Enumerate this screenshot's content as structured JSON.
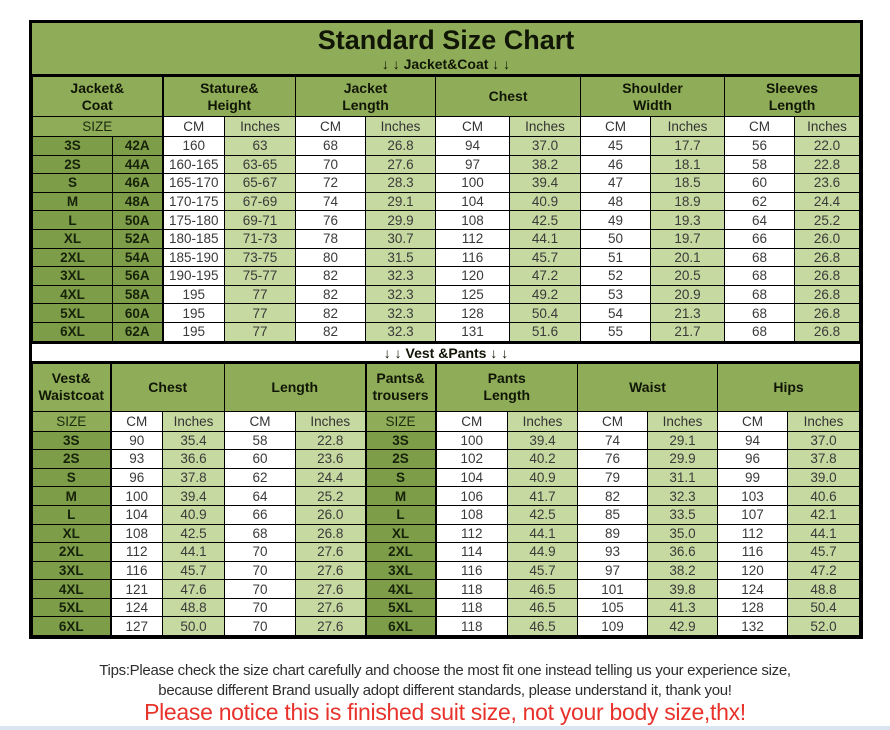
{
  "title": "Standard Size Chart",
  "units": {
    "size": "SIZE",
    "cm": "CM",
    "inches": "Inches"
  },
  "jacket_section": {
    "divider": "↓ ↓  Jacket&Coat  ↓ ↓",
    "columns": [
      "Jacket&\nCoat",
      "Stature&\nHeight",
      "Jacket\nLength",
      "Chest",
      "Shoulder\nWidth",
      "Sleeves\nLength"
    ],
    "rows": [
      [
        "3S",
        "42A",
        "160",
        "63",
        "68",
        "26.8",
        "94",
        "37.0",
        "45",
        "17.7",
        "56",
        "22.0"
      ],
      [
        "2S",
        "44A",
        "160-165",
        "63-65",
        "70",
        "27.6",
        "97",
        "38.2",
        "46",
        "18.1",
        "58",
        "22.8"
      ],
      [
        "S",
        "46A",
        "165-170",
        "65-67",
        "72",
        "28.3",
        "100",
        "39.4",
        "47",
        "18.5",
        "60",
        "23.6"
      ],
      [
        "M",
        "48A",
        "170-175",
        "67-69",
        "74",
        "29.1",
        "104",
        "40.9",
        "48",
        "18.9",
        "62",
        "24.4"
      ],
      [
        "L",
        "50A",
        "175-180",
        "69-71",
        "76",
        "29.9",
        "108",
        "42.5",
        "49",
        "19.3",
        "64",
        "25.2"
      ],
      [
        "XL",
        "52A",
        "180-185",
        "71-73",
        "78",
        "30.7",
        "112",
        "44.1",
        "50",
        "19.7",
        "66",
        "26.0"
      ],
      [
        "2XL",
        "54A",
        "185-190",
        "73-75",
        "80",
        "31.5",
        "116",
        "45.7",
        "51",
        "20.1",
        "68",
        "26.8"
      ],
      [
        "3XL",
        "56A",
        "190-195",
        "75-77",
        "82",
        "32.3",
        "120",
        "47.2",
        "52",
        "20.5",
        "68",
        "26.8"
      ],
      [
        "4XL",
        "58A",
        "195",
        "77",
        "82",
        "32.3",
        "125",
        "49.2",
        "53",
        "20.9",
        "68",
        "26.8"
      ],
      [
        "5XL",
        "60A",
        "195",
        "77",
        "82",
        "32.3",
        "128",
        "50.4",
        "54",
        "21.3",
        "68",
        "26.8"
      ],
      [
        "6XL",
        "62A",
        "195",
        "77",
        "82",
        "32.3",
        "131",
        "51.6",
        "55",
        "21.7",
        "68",
        "26.8"
      ]
    ]
  },
  "vest_section": {
    "divider": "↓ ↓  Vest &Pants  ↓ ↓",
    "columns": [
      "Vest&\nWaistcoat",
      "Chest",
      "Length",
      "Pants&\ntrousers",
      "Pants\nLength",
      "Waist",
      "Hips"
    ],
    "rows": [
      [
        "3S",
        "90",
        "35.4",
        "58",
        "22.8",
        "3S",
        "100",
        "39.4",
        "74",
        "29.1",
        "94",
        "37.0"
      ],
      [
        "2S",
        "93",
        "36.6",
        "60",
        "23.6",
        "2S",
        "102",
        "40.2",
        "76",
        "29.9",
        "96",
        "37.8"
      ],
      [
        "S",
        "96",
        "37.8",
        "62",
        "24.4",
        "S",
        "104",
        "40.9",
        "79",
        "31.1",
        "99",
        "39.0"
      ],
      [
        "M",
        "100",
        "39.4",
        "64",
        "25.2",
        "M",
        "106",
        "41.7",
        "82",
        "32.3",
        "103",
        "40.6"
      ],
      [
        "L",
        "104",
        "40.9",
        "66",
        "26.0",
        "L",
        "108",
        "42.5",
        "85",
        "33.5",
        "107",
        "42.1"
      ],
      [
        "XL",
        "108",
        "42.5",
        "68",
        "26.8",
        "XL",
        "112",
        "44.1",
        "89",
        "35.0",
        "112",
        "44.1"
      ],
      [
        "2XL",
        "112",
        "44.1",
        "70",
        "27.6",
        "2XL",
        "114",
        "44.9",
        "93",
        "36.6",
        "116",
        "45.7"
      ],
      [
        "3XL",
        "116",
        "45.7",
        "70",
        "27.6",
        "3XL",
        "116",
        "45.7",
        "97",
        "38.2",
        "120",
        "47.2"
      ],
      [
        "4XL",
        "121",
        "47.6",
        "70",
        "27.6",
        "4XL",
        "118",
        "46.5",
        "101",
        "39.8",
        "124",
        "48.8"
      ],
      [
        "5XL",
        "124",
        "48.8",
        "70",
        "27.6",
        "5XL",
        "118",
        "46.5",
        "105",
        "41.3",
        "128",
        "50.4"
      ],
      [
        "6XL",
        "127",
        "50.0",
        "70",
        "27.6",
        "6XL",
        "118",
        "46.5",
        "109",
        "42.9",
        "132",
        "52.0"
      ]
    ]
  },
  "footer": {
    "tips_line1": "Tips:Please check the size chart carefully and choose the most fit one instead telling us your experience size,",
    "tips_line2": "because different Brand usually adopt different standards, please understand it, thank you!",
    "notice": "Please notice this is finished suit size, not your body size,thx!"
  },
  "colors": {
    "header_green": "#8fad58",
    "size_green": "#7e9d48",
    "light_green": "#c6d9a0",
    "notice_red": "#e8322b"
  }
}
